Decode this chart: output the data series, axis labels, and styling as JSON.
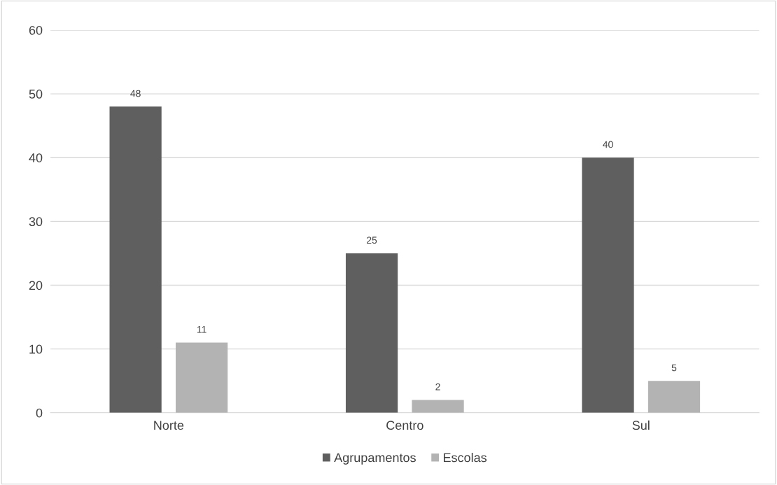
{
  "chart_data": {
    "type": "bar",
    "categories": [
      "Norte",
      "Centro",
      "Sul"
    ],
    "series": [
      {
        "name": "Agrupamentos",
        "color": "#5f5f5f",
        "values": [
          48,
          25,
          40
        ]
      },
      {
        "name": "Escolas",
        "color": "#b3b3b3",
        "values": [
          11,
          2,
          5
        ]
      }
    ],
    "ylim": [
      0,
      60
    ],
    "yticks": [
      0,
      10,
      20,
      30,
      40,
      50,
      60
    ],
    "grid": "y",
    "legend": "bottom",
    "data_labels": true
  }
}
